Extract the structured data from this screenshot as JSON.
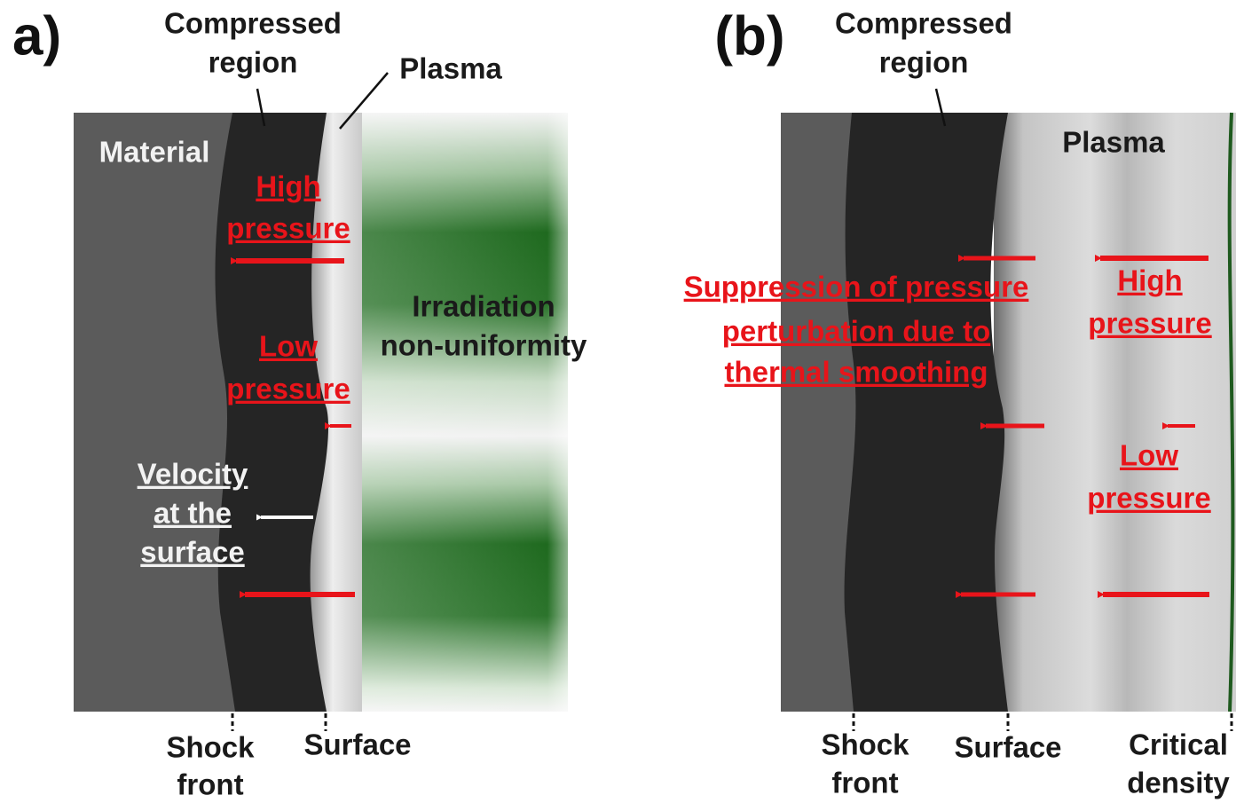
{
  "panel_a": {
    "label": "a)",
    "compressed_region": [
      "Compressed",
      "region"
    ],
    "plasma": "Plasma",
    "material": "Material",
    "high_pressure": [
      "High",
      "pressure"
    ],
    "low_pressure": [
      "Low",
      "pressure"
    ],
    "velocity": [
      "Velocity",
      "at the",
      "surface"
    ],
    "irradiation": [
      "Irradiation",
      "non-uniformity"
    ],
    "shock_front": [
      "Shock",
      "front"
    ],
    "surface": "Surface"
  },
  "panel_b": {
    "label": "(b)",
    "compressed_region": [
      "Compressed",
      "region"
    ],
    "plasma": "Plasma",
    "suppression": [
      "Suppression of pressure",
      "perturbation due to",
      "thermal smoothing"
    ],
    "high_pressure": [
      "High",
      "pressure"
    ],
    "low_pressure": [
      "Low",
      "pressure"
    ],
    "shock_front": [
      "Shock",
      "front"
    ],
    "surface": "Surface",
    "critical_density": [
      "Critical",
      "density"
    ]
  }
}
